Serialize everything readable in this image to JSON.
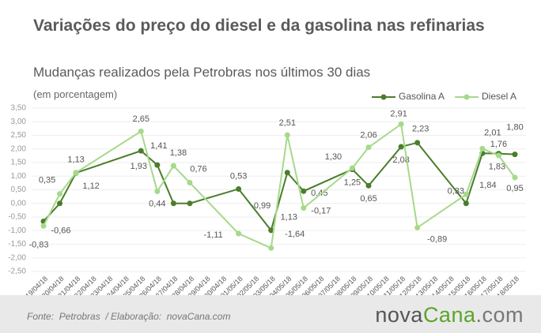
{
  "chart_data": {
    "type": "line",
    "title": "Variações do preço do diesel e da gasolina nas refinarias",
    "subtitle": "Mudanças realizados pela Petrobras nos últimos 30 dias",
    "y_label": "(em porcentagem)",
    "categories": [
      "19/04/18",
      "20/04/18",
      "21/04/18",
      "22/04/18",
      "23/04/18",
      "24/04/18",
      "25/04/18",
      "26/04/18",
      "27/04/18",
      "28/04/18",
      "29/04/18",
      "30/04/18",
      "01/05/18",
      "02/05/18",
      "03/05/18",
      "04/05/18",
      "05/05/18",
      "06/05/18",
      "07/05/18",
      "08/05/18",
      "09/05/18",
      "10/05/18",
      "11/05/18",
      "12/05/18",
      "13/05/18",
      "14/05/18",
      "15/05/18",
      "16/05/18",
      "17/05/18",
      "18/05/18"
    ],
    "series": [
      {
        "name": "Gasolina A",
        "color": "#4b7d2b",
        "values": [
          -0.66,
          0,
          1.12,
          null,
          null,
          null,
          1.93,
          1.41,
          0,
          0,
          null,
          null,
          0.53,
          null,
          -0.99,
          1.13,
          0.45,
          null,
          null,
          1.25,
          0.65,
          null,
          2.08,
          2.23,
          null,
          null,
          0,
          1.84,
          1.83,
          1.8
        ],
        "value_labels": [
          "-0,66",
          null,
          "1,12",
          null,
          null,
          null,
          "1,93",
          "1,41",
          null,
          null,
          null,
          null,
          "0,53",
          null,
          "-0,99",
          "1,13",
          "0,45",
          null,
          null,
          "1,25",
          "0,65",
          null,
          "2,08",
          "2,23",
          null,
          null,
          null,
          "1,84",
          "1,83",
          "1,80"
        ]
      },
      {
        "name": "Diesel A",
        "color": "#a6d98b",
        "values": [
          -0.83,
          0.35,
          1.13,
          null,
          null,
          null,
          2.65,
          0.44,
          1.38,
          0.76,
          null,
          null,
          -1.11,
          null,
          -1.64,
          2.51,
          -0.17,
          null,
          null,
          1.3,
          2.06,
          null,
          2.91,
          -0.89,
          null,
          null,
          0.33,
          2.01,
          1.76,
          0.95
        ],
        "value_labels": [
          "-0,83",
          "0,35",
          "1,13",
          null,
          null,
          null,
          "2,65",
          "0,44",
          "1,38",
          "0,76",
          null,
          null,
          "-1,11",
          null,
          "-1,64",
          "2,51",
          "-0,17",
          null,
          null,
          "1,30",
          "2,06",
          null,
          "2,91",
          "-0,89",
          null,
          null,
          "0,33",
          "2,01",
          "1,76",
          "0,95"
        ]
      }
    ],
    "ylim": [
      -2.5,
      3.5
    ],
    "yticks": [
      {
        "value": -2.5,
        "label": "-2,50"
      },
      {
        "value": -2,
        "label": "-2,00"
      },
      {
        "value": -1.5,
        "label": "-1,50"
      },
      {
        "value": -1,
        "label": "-1,00"
      },
      {
        "value": -0.5,
        "label": "-0,50"
      },
      {
        "value": 0,
        "label": "0,00"
      },
      {
        "value": 0.5,
        "label": "0,50"
      },
      {
        "value": 1,
        "label": "1,00"
      },
      {
        "value": 1.5,
        "label": "1,50"
      },
      {
        "value": 2,
        "label": "2,00"
      },
      {
        "value": 2.5,
        "label": "2,50"
      },
      {
        "value": 3,
        "label": "3,00"
      },
      {
        "value": 3.5,
        "label": "3,50"
      }
    ],
    "grid": true
  },
  "footer": {
    "source": "Fonte:  Petrobras  / Elaboração:  novaCana.com",
    "logo": [
      "nova",
      "Cana",
      ".com"
    ]
  }
}
